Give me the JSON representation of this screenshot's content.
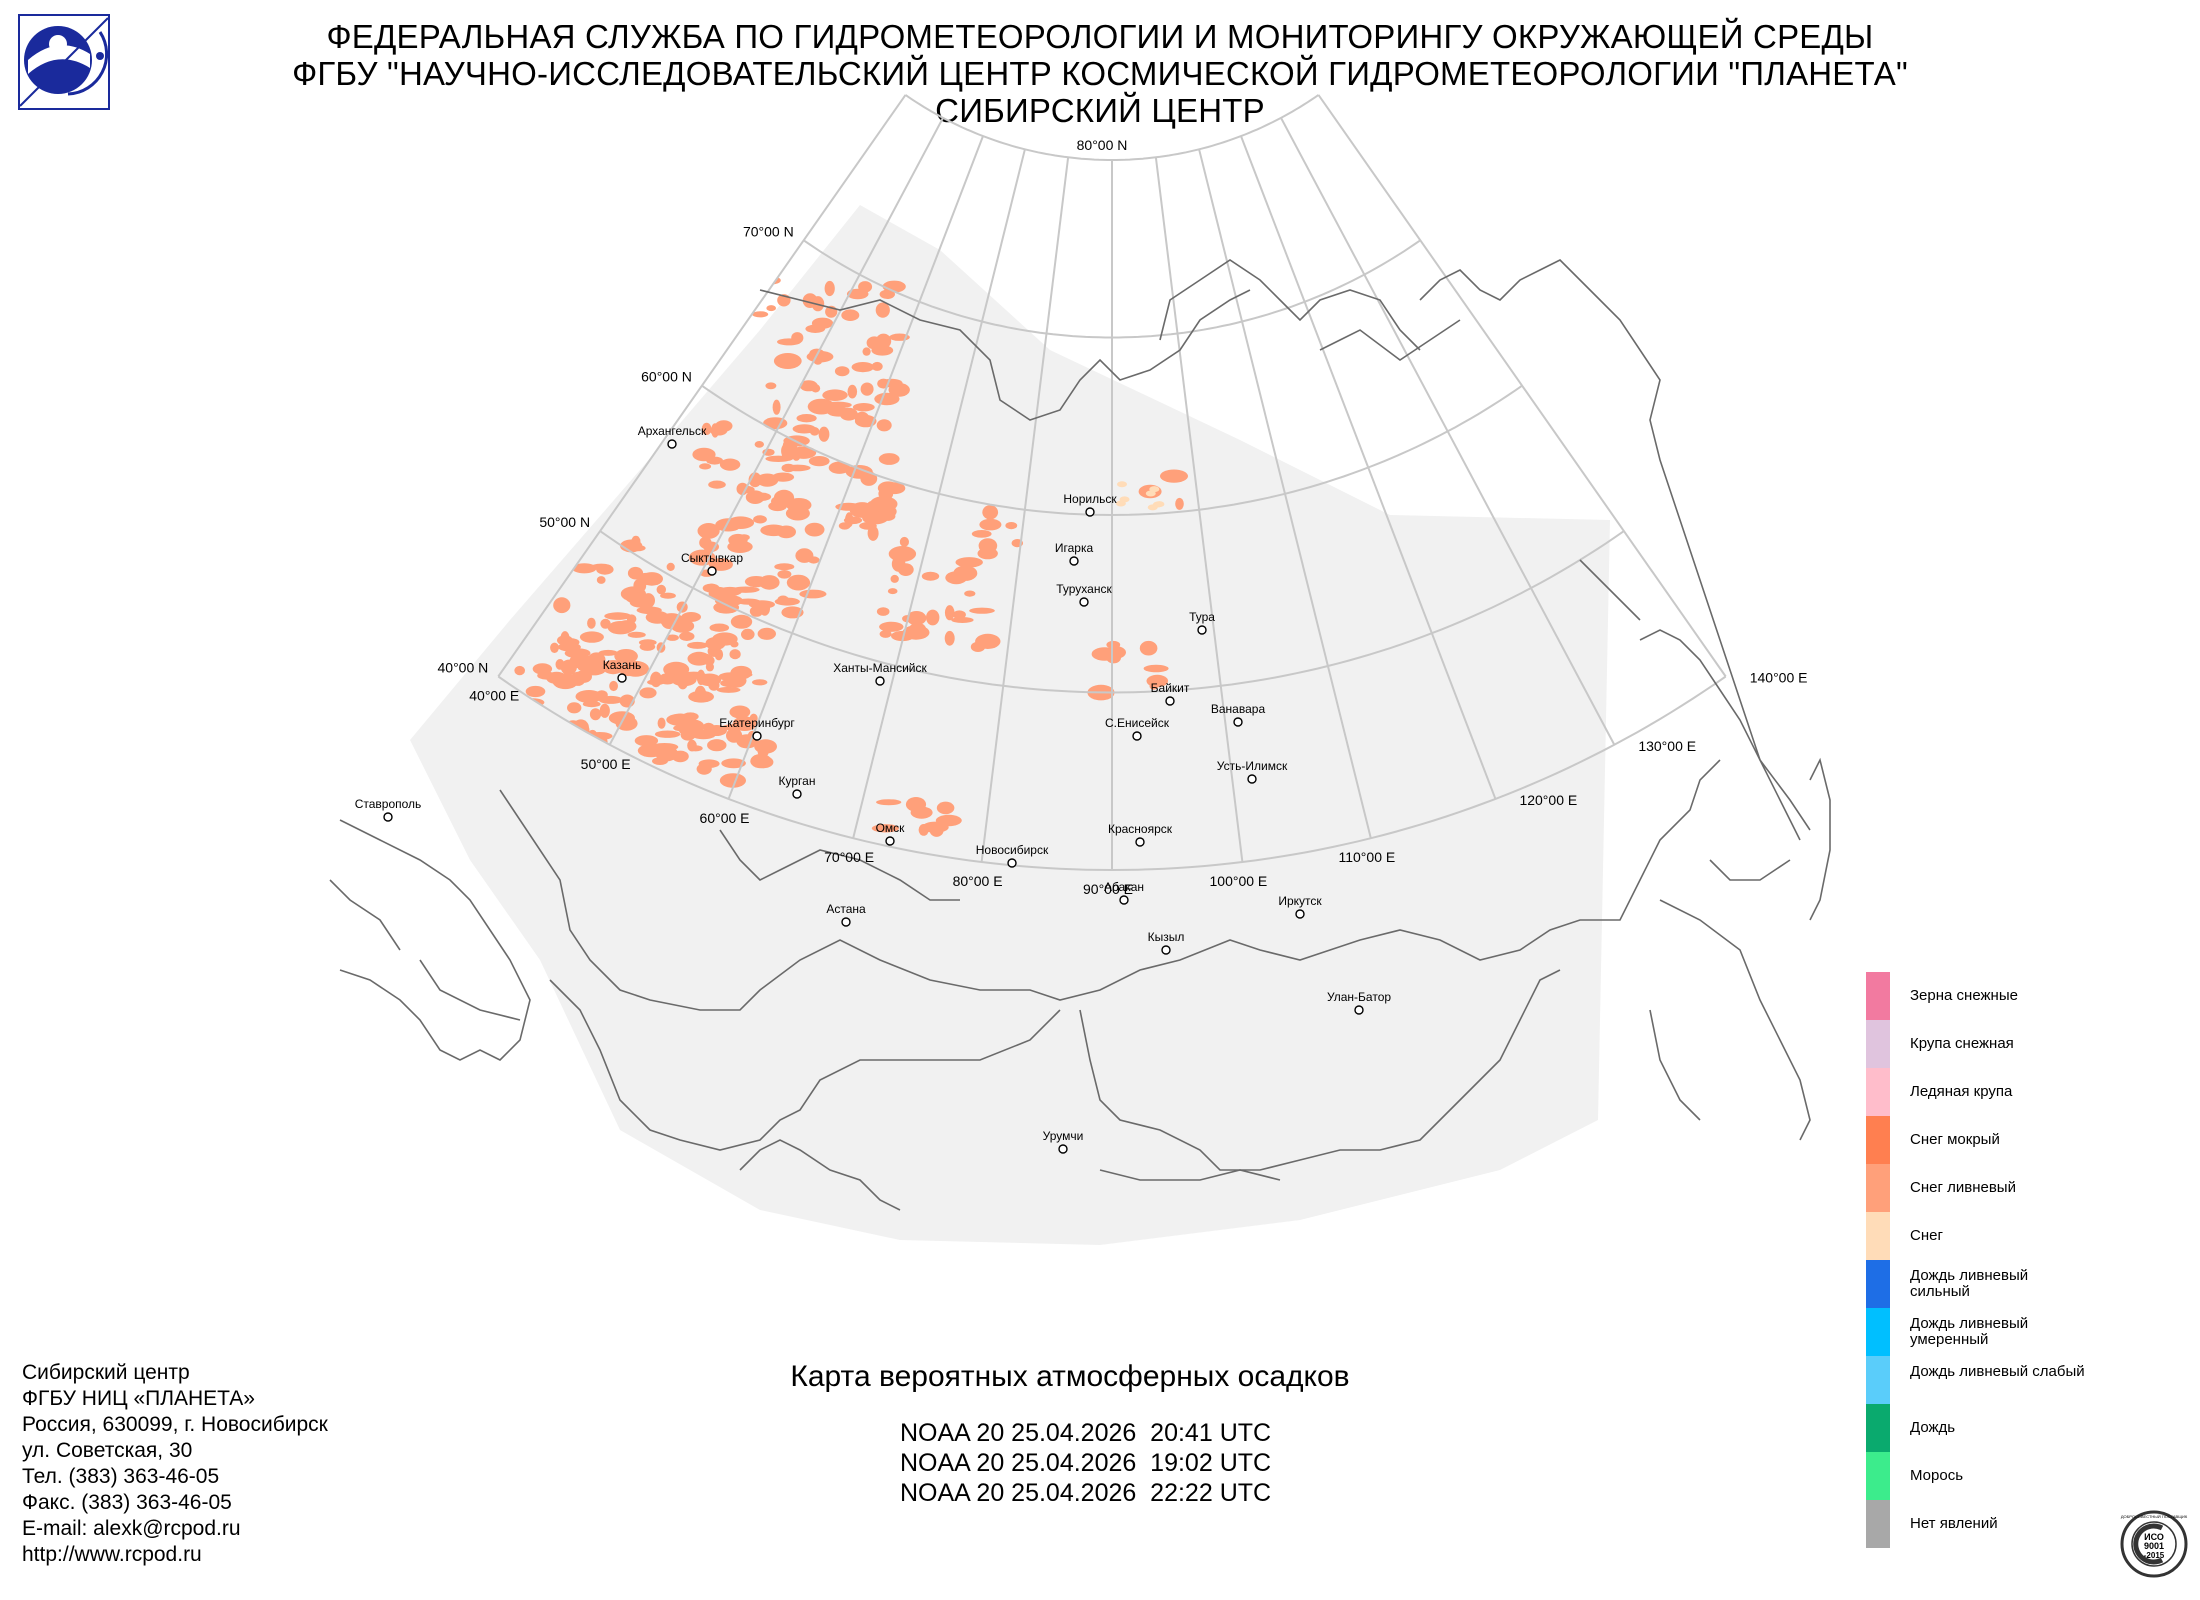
{
  "header": {
    "line1": "ФЕДЕРАЛЬНАЯ СЛУЖБА ПО ГИДРОМЕТЕОРОЛОГИИ И МОНИТОРИНГУ ОКРУЖАЮЩЕЙ СРЕДЫ",
    "line2": "ФГБУ \"НАУЧНО-ИССЛЕДОВАТЕЛЬСКИЙ ЦЕНТР КОСМИЧЕСКОЙ ГИДРОМЕТЕОРОЛОГИИ \"ПЛАНЕТА\"",
    "line3": "СИБИРСКИЙ ЦЕНТР"
  },
  "map": {
    "latitudes": [
      "80°00 N",
      "70°00 N",
      "60°00 N",
      "50°00 N",
      "40°00 N"
    ],
    "longitudes": [
      "40°00 E",
      "50°00 E",
      "60°00 E",
      "70°00 E",
      "80°00 E",
      "90°00 E",
      "100°00 E",
      "110°00 E",
      "120°00 E",
      "130°00 E",
      "140°00 E"
    ],
    "cities": [
      {
        "name": "Архангельск"
      },
      {
        "name": "Сыктывкар"
      },
      {
        "name": "Казань"
      },
      {
        "name": "Екатеринбург"
      },
      {
        "name": "Курган"
      },
      {
        "name": "Ставрополь"
      },
      {
        "name": "Ханты-Мансийск"
      },
      {
        "name": "Омск"
      },
      {
        "name": "Астана"
      },
      {
        "name": "Новосибирск"
      },
      {
        "name": "Норильск"
      },
      {
        "name": "Игарка"
      },
      {
        "name": "Туруханск"
      },
      {
        "name": "Тура"
      },
      {
        "name": "Байкит"
      },
      {
        "name": "С.Енисейск"
      },
      {
        "name": "Ванавара"
      },
      {
        "name": "Усть-Илимск"
      },
      {
        "name": "Красноярск"
      },
      {
        "name": "Абакан"
      },
      {
        "name": "Кызыл"
      },
      {
        "name": "Иркутск"
      },
      {
        "name": "Улан-Батор"
      },
      {
        "name": "Урумчи"
      }
    ],
    "colors": {
      "background": "#f1f1f1",
      "precip": "#ffa07a",
      "border": "#666666",
      "graticule": "#c8c8c8"
    }
  },
  "legend": [
    {
      "label": "Зерна снежные",
      "color": "#f27aa0"
    },
    {
      "label": "Крупа снежная",
      "color": "#e0c4de"
    },
    {
      "label": "Ледяная крупа",
      "color": "#ffbdcb"
    },
    {
      "label": "Снег мокрый",
      "color": "#ff7f50"
    },
    {
      "label": "Снег ливневый",
      "color": "#ffa07a"
    },
    {
      "label": "Снег",
      "color": "#ffdcb8"
    },
    {
      "label": "Дождь ливневый сильный",
      "color": "#1e6ee6"
    },
    {
      "label": "Дождь ливневый умеренный",
      "color": "#00bfff"
    },
    {
      "label": "Дождь ливневый слабый",
      "color": "#5acdfa"
    },
    {
      "label": "Дождь",
      "color": "#0aaa6e"
    },
    {
      "label": "Морось",
      "color": "#3cec8c"
    },
    {
      "label": "Нет явлений",
      "color": "#a8a8a8"
    }
  ],
  "contacts": [
    "Сибирский центр",
    "ФГБУ НИЦ «ПЛАНЕТА»",
    "Россия, 630099, г. Новосибирск",
    "ул. Советская, 30",
    "Тел. (383) 363-46-05",
    "Факс. (383) 363-46-05",
    "E-mail: alexk@rcpod.ru",
    "http://www.rcpod.ru"
  ],
  "title": "Карта вероятных атмосферных осадков",
  "passes": [
    "NOAA 20 25.04.2026  20:41 UTC",
    "NOAA 20 25.04.2026  19:02 UTC",
    "NOAA 20 25.04.2026  22:22 UTC"
  ],
  "iso_badge": {
    "line1": "ИСО",
    "line2": "9001",
    "line3": "-2015",
    "ring_text": "ДОБРОСОВЕСТНЫЙ ПОСТАВЩИК"
  }
}
